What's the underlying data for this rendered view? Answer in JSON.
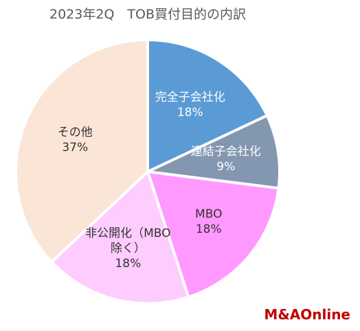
{
  "chart_data": {
    "type": "pie",
    "title": "2023年2Q　TOB買付目的の内訳",
    "categories": [
      "完全子会社化",
      "連結子会社化",
      "MBO",
      "非公開化（MBO除く）",
      "その他"
    ],
    "values": [
      18,
      9,
      18,
      18,
      37
    ],
    "value_labels": [
      "18%",
      "9%",
      "18%",
      "18%",
      "37%"
    ],
    "colors": [
      "#5b9bd5",
      "#8497b0",
      "#ff99ff",
      "#ffccff",
      "#fbe5d6"
    ],
    "label_colors": [
      "#ffffff",
      "#ffffff",
      "#333333",
      "#333333",
      "#333333"
    ]
  },
  "logo": "M&AOnline"
}
